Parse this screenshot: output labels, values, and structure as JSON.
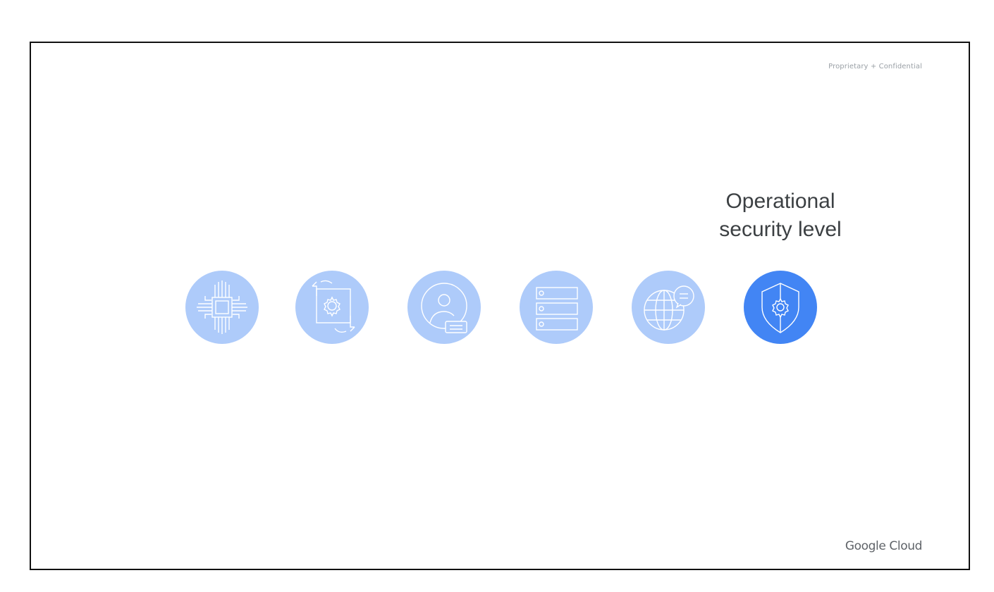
{
  "header": {
    "confidential_label": "Proprietary + Confidential"
  },
  "title": {
    "line1": "Operational",
    "line2": "security level"
  },
  "icons": [
    {
      "name": "chip-icon",
      "active": false
    },
    {
      "name": "config-refresh-icon",
      "active": false
    },
    {
      "name": "user-identity-icon",
      "active": false
    },
    {
      "name": "storage-stack-icon",
      "active": false
    },
    {
      "name": "globe-chat-icon",
      "active": false
    },
    {
      "name": "shield-gear-icon",
      "active": true
    }
  ],
  "colors": {
    "inactive_circle": "#aecbfa",
    "active_circle": "#4285f4",
    "icon_stroke": "#ffffff",
    "title_text": "#3c4043"
  },
  "footer": {
    "brand_label": "Google Cloud"
  }
}
